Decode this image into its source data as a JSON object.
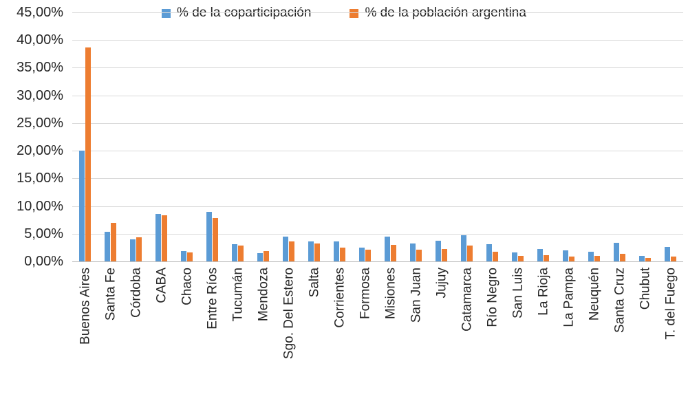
{
  "chart_data": {
    "type": "bar",
    "title": "",
    "xlabel": "",
    "ylabel": "",
    "ylim": [
      0,
      45
    ],
    "ytick_step": 5,
    "ytick_labels": [
      "0,00%",
      "5,00%",
      "10,00%",
      "15,00%",
      "20,00%",
      "25,00%",
      "30,00%",
      "35,00%",
      "40,00%",
      "45,00%"
    ],
    "grid": true,
    "legend_position": "top-center",
    "categories": [
      "Buenos Aires",
      "Santa Fe",
      "Córdoba",
      "CABA",
      "Chaco",
      "Entre Ríos",
      "Tucumán",
      "Mendoza",
      "Sgo. Del Estero",
      "Salta",
      "Corrientes",
      "Formosa",
      "Misiones",
      "San Juan",
      "Jujuy",
      "Catamarca",
      "Río Negro",
      "San Luis",
      "La Rioja",
      "La Pampa",
      "Neuquén",
      "Santa Cruz",
      "Chubut",
      "T. del Fuego"
    ],
    "series": [
      {
        "name": "% de la coparticipación",
        "color": "#5b9bd5",
        "values": [
          20.0,
          5.3,
          4.0,
          8.6,
          1.9,
          9.0,
          3.1,
          1.5,
          4.5,
          3.6,
          3.6,
          2.5,
          4.5,
          3.2,
          3.7,
          4.7,
          3.1,
          1.6,
          2.2,
          2.0,
          1.8,
          3.4,
          1.0,
          2.6
        ]
      },
      {
        "name": "% de la población argentina",
        "color": "#ed7d31",
        "values": [
          38.7,
          7.0,
          4.4,
          8.3,
          1.6,
          7.8,
          2.9,
          1.9,
          3.6,
          3.2,
          2.5,
          2.1,
          3.0,
          2.1,
          2.2,
          2.9,
          1.8,
          1.0,
          1.1,
          0.9,
          1.0,
          1.4,
          0.6,
          0.9
        ]
      }
    ]
  },
  "colors": {
    "gridline": "#d9d9d9",
    "axis_line": "#bfbfbf",
    "text": "#262626"
  }
}
